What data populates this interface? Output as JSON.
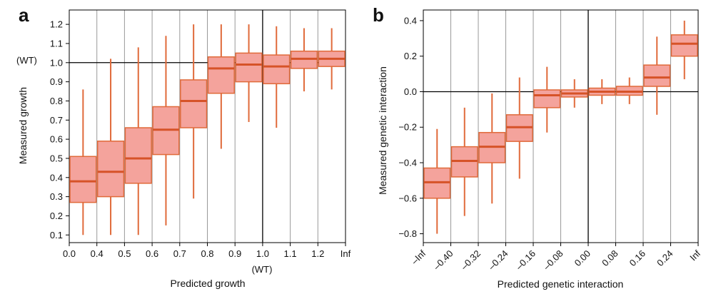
{
  "chart_data": [
    {
      "panel": "a",
      "type": "boxplot",
      "xlabel": "Predicted growth",
      "ylabel": "Measured growth",
      "x_tick_labels": [
        "0.0",
        "0.4",
        "0.5",
        "0.6",
        "0.7",
        "0.8",
        "0.9",
        "1.0",
        "1.1",
        "1.2",
        "Inf"
      ],
      "x_annotation": "(WT)",
      "y_annotation": "(WT)",
      "yticks": [
        "0.1",
        "0.2",
        "0.3",
        "0.4",
        "0.5",
        "0.6",
        "0.7",
        "0.8",
        "0.9",
        "1.0",
        "1.1",
        "1.2"
      ],
      "ylim": [
        0.06,
        1.275
      ],
      "reference_line_y": 1.0,
      "reference_line_x_label": "1.0",
      "grid": "vertical",
      "boxes": [
        {
          "q1": 0.27,
          "median": 0.38,
          "q3": 0.51,
          "whisker_low": 0.1,
          "whisker_high": 0.86
        },
        {
          "q1": 0.3,
          "median": 0.43,
          "q3": 0.59,
          "whisker_low": 0.1,
          "whisker_high": 1.02
        },
        {
          "q1": 0.37,
          "median": 0.5,
          "q3": 0.66,
          "whisker_low": 0.1,
          "whisker_high": 1.08
        },
        {
          "q1": 0.52,
          "median": 0.65,
          "q3": 0.77,
          "whisker_low": 0.15,
          "whisker_high": 1.14
        },
        {
          "q1": 0.66,
          "median": 0.8,
          "q3": 0.91,
          "whisker_low": 0.29,
          "whisker_high": 1.2
        },
        {
          "q1": 0.84,
          "median": 0.97,
          "q3": 1.03,
          "whisker_low": 0.55,
          "whisker_high": 1.2
        },
        {
          "q1": 0.9,
          "median": 0.99,
          "q3": 1.05,
          "whisker_low": 0.69,
          "whisker_high": 1.2
        },
        {
          "q1": 0.89,
          "median": 0.98,
          "q3": 1.04,
          "whisker_low": 0.66,
          "whisker_high": 1.19
        },
        {
          "q1": 0.97,
          "median": 1.02,
          "q3": 1.06,
          "whisker_low": 0.85,
          "whisker_high": 1.18
        },
        {
          "q1": 0.98,
          "median": 1.02,
          "q3": 1.06,
          "whisker_low": 0.86,
          "whisker_high": 1.18
        }
      ]
    },
    {
      "panel": "b",
      "type": "boxplot",
      "xlabel": "Predicted genetic interaction",
      "ylabel": "Measured genetic interaction",
      "x_tick_labels": [
        "–Inf",
        "–0.40",
        "–0.32",
        "–0.24",
        "–0.16",
        "–0.08",
        "0.00",
        "0.08",
        "0.16",
        "0.24",
        "Inf"
      ],
      "yticks": [
        "0.4",
        "0.2",
        "0.0",
        "−0.2",
        "−0.4",
        "−0.6",
        "−0.8"
      ],
      "ylim": [
        -0.85,
        0.46
      ],
      "reference_line_y": 0.0,
      "reference_line_x_label": "0.00",
      "grid": "vertical",
      "boxes": [
        {
          "q1": -0.6,
          "median": -0.51,
          "q3": -0.43,
          "whisker_low": -0.8,
          "whisker_high": -0.21
        },
        {
          "q1": -0.48,
          "median": -0.39,
          "q3": -0.31,
          "whisker_low": -0.7,
          "whisker_high": -0.09
        },
        {
          "q1": -0.4,
          "median": -0.31,
          "q3": -0.23,
          "whisker_low": -0.63,
          "whisker_high": -0.01
        },
        {
          "q1": -0.28,
          "median": -0.2,
          "q3": -0.13,
          "whisker_low": -0.49,
          "whisker_high": 0.08
        },
        {
          "q1": -0.09,
          "median": -0.02,
          "q3": 0.01,
          "whisker_low": -0.23,
          "whisker_high": 0.14
        },
        {
          "q1": -0.03,
          "median": -0.01,
          "q3": 0.01,
          "whisker_low": -0.09,
          "whisker_high": 0.07
        },
        {
          "q1": -0.02,
          "median": 0.0,
          "q3": 0.02,
          "whisker_low": -0.07,
          "whisker_high": 0.07
        },
        {
          "q1": -0.02,
          "median": 0.0,
          "q3": 0.03,
          "whisker_low": -0.07,
          "whisker_high": 0.08
        },
        {
          "q1": 0.03,
          "median": 0.08,
          "q3": 0.15,
          "whisker_low": -0.13,
          "whisker_high": 0.31
        },
        {
          "q1": 0.2,
          "median": 0.27,
          "q3": 0.32,
          "whisker_low": 0.07,
          "whisker_high": 0.4
        }
      ]
    }
  ],
  "colors": {
    "box_fill": "#f4a39c",
    "box_stroke": "#e06a3a",
    "median": "#d65328",
    "whisker": "#e06a3a",
    "grid": "#9a9a9a",
    "reference": "#000000"
  }
}
